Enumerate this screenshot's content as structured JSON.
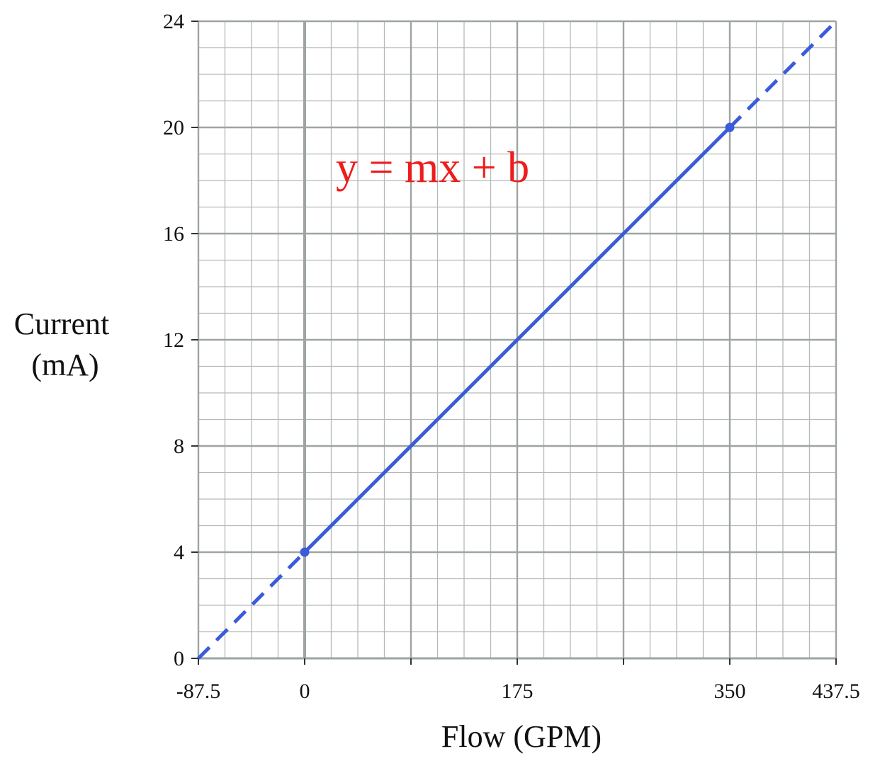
{
  "chart_data": {
    "type": "line",
    "title": "",
    "xlabel": "Flow (GPM)",
    "ylabel_line1": "Current",
    "ylabel_line2": "(mA)",
    "xlim": [
      -87.5,
      437.5
    ],
    "ylim": [
      0,
      24
    ],
    "x_tick_labels": [
      {
        "value": -87.5,
        "label": "-87.5"
      },
      {
        "value": 0,
        "label": "0"
      },
      {
        "value": 175,
        "label": "175"
      },
      {
        "value": 350,
        "label": "350"
      },
      {
        "value": 437.5,
        "label": "437.5"
      }
    ],
    "x_major_ticks": [
      -87.5,
      0,
      87.5,
      175,
      262.5,
      350,
      437.5
    ],
    "y_ticks": [
      0,
      4,
      8,
      12,
      16,
      20,
      24
    ],
    "grid": true,
    "grid_minor_x_step": 21.875,
    "grid_minor_y_step": 1,
    "annotation": "y = mx + b",
    "series": [
      {
        "style": "solid",
        "color": "#3a5bdc",
        "points": [
          [
            0,
            4
          ],
          [
            350,
            20
          ]
        ]
      },
      {
        "style": "dashed",
        "color": "#3a5bdc",
        "points": [
          [
            -87.5,
            0
          ],
          [
            0,
            4
          ]
        ]
      },
      {
        "style": "dashed",
        "color": "#3a5bdc",
        "points": [
          [
            350,
            20
          ],
          [
            437.5,
            24
          ]
        ]
      }
    ],
    "markers": [
      [
        0,
        4
      ],
      [
        350,
        20
      ]
    ],
    "colors": {
      "line": "#3a5bdc",
      "annotation": "#ee1c1c",
      "grid_minor": "#b4bab8",
      "grid_major": "#9ea4a2"
    }
  }
}
